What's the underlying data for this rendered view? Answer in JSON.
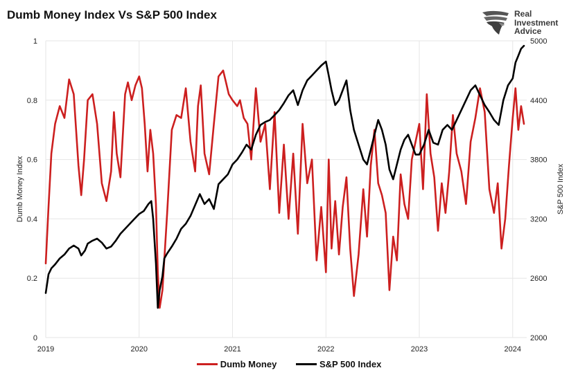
{
  "title": "Dumb Money Index Vs S&P 500 Index",
  "brand": {
    "line1": "Real",
    "line2": "Investment",
    "line3": "Advice"
  },
  "colors": {
    "dumb_money": "#cc1f1f",
    "sp500": "#000000",
    "grid": "#e6e6e6",
    "text": "#222222"
  },
  "chart_data": {
    "type": "line",
    "title": "Dumb Money Index Vs S&P 500 Index",
    "xlabel": "",
    "x_ticks": [
      "2019",
      "2020",
      "2021",
      "2022",
      "2023",
      "2024"
    ],
    "xlim": [
      2019.0,
      2024.15
    ],
    "y_left": {
      "label": "Dumb Money Index",
      "ylim": [
        0,
        1
      ],
      "ticks": [
        "0",
        "0.2",
        "0.4",
        "0.6",
        "0.8",
        "1"
      ]
    },
    "y_right": {
      "label": "S&P 500 Index",
      "ylim": [
        2000,
        5000
      ],
      "ticks": [
        "2000",
        "2600",
        "3200",
        "3800",
        "4400",
        "5000"
      ]
    },
    "grid": true,
    "legend_position": "bottom-center",
    "series": [
      {
        "name": "Dumb Money",
        "axis": "left",
        "x": [
          2019.0,
          2019.03,
          2019.06,
          2019.1,
          2019.15,
          2019.2,
          2019.25,
          2019.3,
          2019.35,
          2019.38,
          2019.41,
          2019.45,
          2019.5,
          2019.55,
          2019.6,
          2019.65,
          2019.7,
          2019.73,
          2019.76,
          2019.8,
          2019.85,
          2019.88,
          2019.92,
          2019.96,
          2020.0,
          2020.03,
          2020.06,
          2020.09,
          2020.12,
          2020.15,
          2020.18,
          2020.2,
          2020.22,
          2020.25,
          2020.3,
          2020.35,
          2020.4,
          2020.45,
          2020.5,
          2020.55,
          2020.6,
          2020.63,
          2020.66,
          2020.7,
          2020.75,
          2020.8,
          2020.85,
          2020.9,
          2020.93,
          2020.96,
          2021.0,
          2021.05,
          2021.08,
          2021.12,
          2021.16,
          2021.2,
          2021.25,
          2021.3,
          2021.35,
          2021.4,
          2021.45,
          2021.5,
          2021.55,
          2021.6,
          2021.65,
          2021.7,
          2021.75,
          2021.8,
          2021.85,
          2021.9,
          2021.95,
          2022.0,
          2022.03,
          2022.06,
          2022.1,
          2022.14,
          2022.18,
          2022.22,
          2022.26,
          2022.3,
          2022.35,
          2022.4,
          2022.44,
          2022.48,
          2022.52,
          2022.56,
          2022.6,
          2022.64,
          2022.68,
          2022.72,
          2022.76,
          2022.8,
          2022.84,
          2022.88,
          2022.92,
          2022.96,
          2023.0,
          2023.04,
          2023.08,
          2023.12,
          2023.16,
          2023.2,
          2023.24,
          2023.28,
          2023.32,
          2023.36,
          2023.4,
          2023.45,
          2023.5,
          2023.55,
          2023.6,
          2023.65,
          2023.7,
          2023.75,
          2023.8,
          2023.84,
          2023.88,
          2023.92,
          2023.96,
          2024.0,
          2024.03,
          2024.06,
          2024.09,
          2024.12
        ],
        "y": [
          0.25,
          0.44,
          0.62,
          0.72,
          0.78,
          0.74,
          0.87,
          0.82,
          0.58,
          0.48,
          0.6,
          0.8,
          0.82,
          0.72,
          0.52,
          0.46,
          0.56,
          0.76,
          0.62,
          0.54,
          0.82,
          0.86,
          0.8,
          0.85,
          0.88,
          0.84,
          0.72,
          0.56,
          0.7,
          0.62,
          0.45,
          0.22,
          0.1,
          0.16,
          0.42,
          0.7,
          0.75,
          0.74,
          0.84,
          0.66,
          0.56,
          0.78,
          0.85,
          0.62,
          0.55,
          0.72,
          0.88,
          0.9,
          0.86,
          0.82,
          0.8,
          0.78,
          0.8,
          0.74,
          0.72,
          0.6,
          0.84,
          0.66,
          0.72,
          0.5,
          0.76,
          0.42,
          0.65,
          0.4,
          0.62,
          0.35,
          0.72,
          0.52,
          0.6,
          0.26,
          0.44,
          0.22,
          0.6,
          0.3,
          0.46,
          0.28,
          0.44,
          0.54,
          0.3,
          0.14,
          0.28,
          0.5,
          0.34,
          0.58,
          0.7,
          0.52,
          0.48,
          0.42,
          0.16,
          0.34,
          0.26,
          0.55,
          0.45,
          0.4,
          0.6,
          0.66,
          0.72,
          0.5,
          0.82,
          0.62,
          0.54,
          0.36,
          0.52,
          0.42,
          0.56,
          0.75,
          0.62,
          0.56,
          0.45,
          0.66,
          0.74,
          0.84,
          0.76,
          0.5,
          0.42,
          0.52,
          0.3,
          0.4,
          0.58,
          0.74,
          0.84,
          0.7,
          0.78,
          0.72
        ]
      },
      {
        "name": "S&P 500 Index",
        "axis": "right",
        "x": [
          2019.0,
          2019.03,
          2019.06,
          2019.1,
          2019.15,
          2019.2,
          2019.25,
          2019.3,
          2019.35,
          2019.38,
          2019.42,
          2019.45,
          2019.5,
          2019.55,
          2019.6,
          2019.65,
          2019.7,
          2019.75,
          2019.8,
          2019.85,
          2019.9,
          2019.95,
          2020.0,
          2020.05,
          2020.1,
          2020.13,
          2020.15,
          2020.18,
          2020.2,
          2020.22,
          2020.25,
          2020.27,
          2020.3,
          2020.35,
          2020.4,
          2020.45,
          2020.5,
          2020.55,
          2020.6,
          2020.65,
          2020.7,
          2020.75,
          2020.8,
          2020.85,
          2020.9,
          2020.95,
          2021.0,
          2021.05,
          2021.1,
          2021.15,
          2021.2,
          2021.25,
          2021.3,
          2021.35,
          2021.4,
          2021.45,
          2021.5,
          2021.55,
          2021.6,
          2021.65,
          2021.7,
          2021.75,
          2021.8,
          2021.85,
          2021.9,
          2021.95,
          2022.0,
          2022.03,
          2022.06,
          2022.1,
          2022.14,
          2022.18,
          2022.22,
          2022.26,
          2022.3,
          2022.35,
          2022.4,
          2022.44,
          2022.48,
          2022.52,
          2022.56,
          2022.6,
          2022.64,
          2022.68,
          2022.72,
          2022.76,
          2022.8,
          2022.84,
          2022.88,
          2022.92,
          2022.96,
          2023.0,
          2023.05,
          2023.1,
          2023.15,
          2023.2,
          2023.25,
          2023.3,
          2023.35,
          2023.4,
          2023.45,
          2023.5,
          2023.55,
          2023.6,
          2023.65,
          2023.7,
          2023.75,
          2023.8,
          2023.85,
          2023.9,
          2023.95,
          2024.0,
          2024.03,
          2024.06,
          2024.09,
          2024.12
        ],
        "y": [
          2450,
          2640,
          2700,
          2740,
          2800,
          2840,
          2900,
          2930,
          2900,
          2830,
          2880,
          2950,
          2980,
          3000,
          2960,
          2900,
          2920,
          2980,
          3050,
          3100,
          3150,
          3200,
          3250,
          3280,
          3350,
          3380,
          3200,
          2750,
          2300,
          2480,
          2620,
          2800,
          2850,
          2920,
          3000,
          3100,
          3150,
          3230,
          3340,
          3450,
          3350,
          3400,
          3300,
          3550,
          3600,
          3650,
          3750,
          3800,
          3870,
          3950,
          3900,
          4050,
          4150,
          4180,
          4200,
          4250,
          4300,
          4370,
          4450,
          4500,
          4350,
          4500,
          4600,
          4650,
          4700,
          4750,
          4790,
          4650,
          4500,
          4350,
          4400,
          4500,
          4600,
          4300,
          4100,
          3950,
          3800,
          3750,
          3900,
          4050,
          4200,
          4100,
          3950,
          3700,
          3600,
          3750,
          3900,
          4000,
          4050,
          3950,
          3850,
          3850,
          3950,
          4100,
          3970,
          3950,
          4100,
          4150,
          4100,
          4200,
          4300,
          4400,
          4500,
          4550,
          4450,
          4350,
          4280,
          4200,
          4150,
          4400,
          4550,
          4620,
          4780,
          4850,
          4920,
          4950
        ]
      }
    ]
  }
}
